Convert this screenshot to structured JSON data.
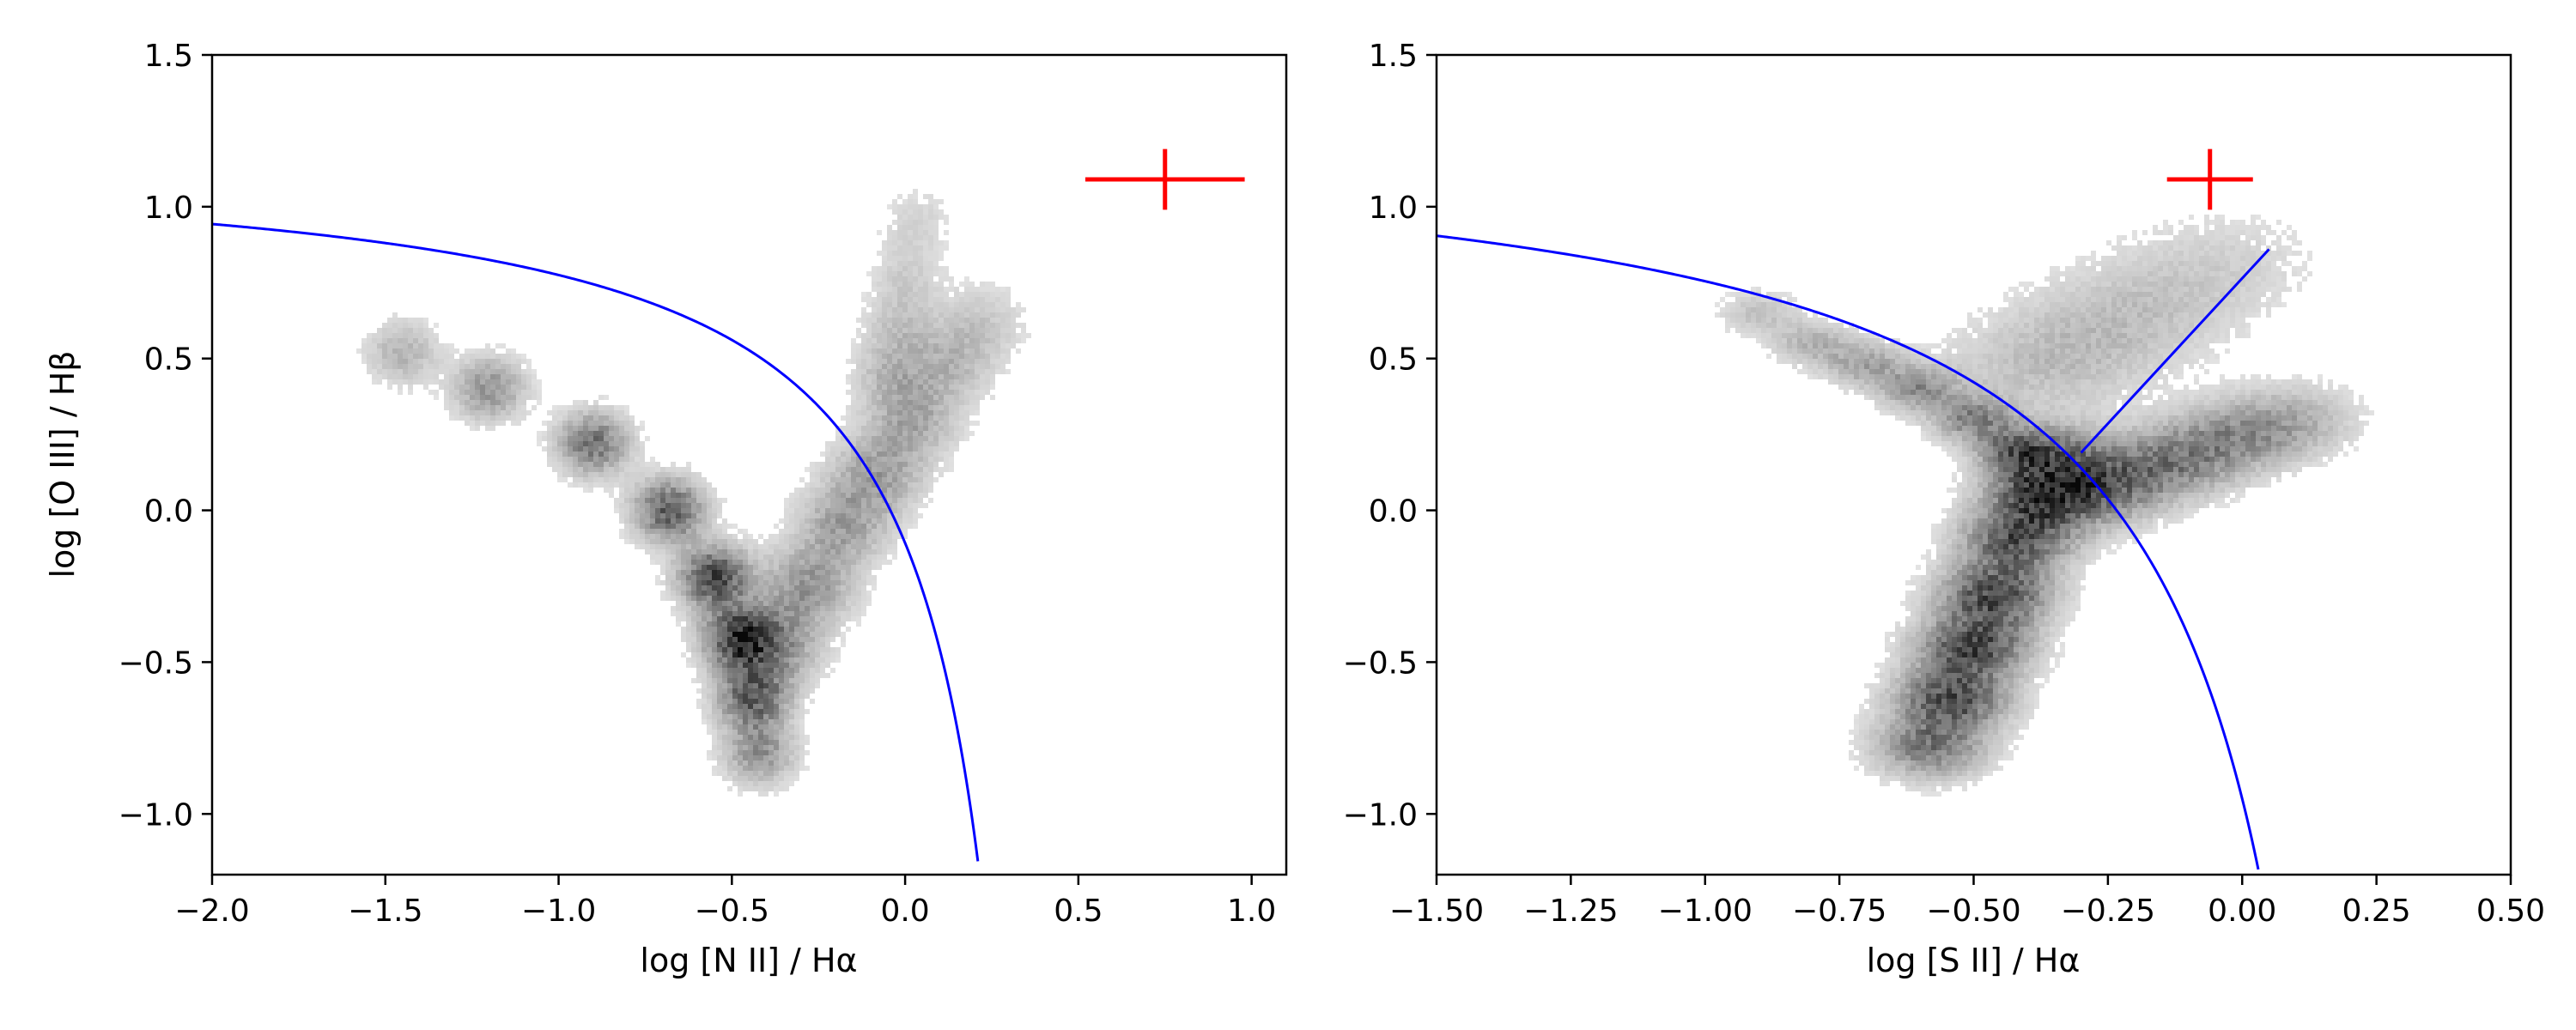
{
  "chart_data": [
    {
      "type": "heatmap",
      "xlabel": "log [N II] / Hα",
      "ylabel": "log [O III] / Hβ",
      "xlim": [
        -2.0,
        1.1
      ],
      "ylim": [
        -1.2,
        1.5
      ],
      "xticks": [
        -2.0,
        -1.5,
        -1.0,
        -0.5,
        0.0,
        0.5,
        1.0
      ],
      "xtick_labels": [
        "−2.0",
        "−1.5",
        "−1.0",
        "−0.5",
        "0.0",
        "0.5",
        "1.0"
      ],
      "yticks": [
        -1.0,
        -0.5,
        0.0,
        0.5,
        1.0,
        1.5
      ],
      "ytick_labels": [
        "−1.0",
        "−0.5",
        "0.0",
        "0.5",
        "1.0",
        "1.5"
      ],
      "grid": false,
      "density": {
        "colormap": "greys",
        "components": [
          {
            "x": [
              -1.45,
              -1.2,
              -0.9,
              -0.68,
              -0.55,
              -0.48,
              -0.44,
              -0.42
            ],
            "y": [
              0.52,
              0.4,
              0.22,
              0.0,
              -0.22,
              -0.42,
              -0.62,
              -0.8
            ],
            "weight": [
              0.35,
              0.55,
              0.75,
              0.9,
              1.0,
              1.0,
              0.85,
              0.55
            ],
            "spread": 0.07
          },
          {
            "x": [
              -0.38,
              -0.28,
              -0.18,
              -0.08,
              0.02,
              0.12,
              0.22
            ],
            "y": [
              -0.45,
              -0.25,
              -0.05,
              0.12,
              0.3,
              0.48,
              0.62
            ],
            "weight": [
              0.55,
              0.5,
              0.45,
              0.45,
              0.4,
              0.3,
              0.2
            ],
            "spread": 0.09
          },
          {
            "x": [
              -0.05,
              -0.02,
              0.0,
              0.02,
              0.05
            ],
            "y": [
              0.45,
              0.6,
              0.75,
              0.9,
              1.0
            ],
            "weight": [
              0.25,
              0.22,
              0.18,
              0.12,
              0.08
            ],
            "spread": 0.07
          }
        ]
      },
      "curve": {
        "color": "#0000ff",
        "formula": "y = 0.61 / (x - 0.47) + 1.19",
        "x_range": [
          -2.0,
          0.21
        ]
      },
      "error_bar": {
        "color": "#ff0000",
        "x": 0.75,
        "y": 1.09,
        "xerr": 0.23,
        "yerr": 0.1
      }
    },
    {
      "type": "heatmap",
      "xlabel": "log [S II] / Hα",
      "ylabel": "",
      "xlim": [
        -1.5,
        0.5
      ],
      "ylim": [
        -1.2,
        1.5
      ],
      "xticks": [
        -1.5,
        -1.25,
        -1.0,
        -0.75,
        -0.5,
        -0.25,
        0.0,
        0.25,
        0.5
      ],
      "xtick_labels": [
        "−1.50",
        "−1.25",
        "−1.00",
        "−0.75",
        "−0.50",
        "−0.25",
        "0.00",
        "0.25",
        "0.50"
      ],
      "yticks": [
        -1.0,
        -0.5,
        0.0,
        0.5,
        1.0,
        1.5
      ],
      "ytick_labels": [
        "−1.0",
        "−0.5",
        "0.0",
        "0.5",
        "1.0",
        "1.5"
      ],
      "grid": false,
      "density": {
        "colormap": "greys",
        "components": [
          {
            "x": [
              -0.58,
              -0.54,
              -0.5,
              -0.46,
              -0.42,
              -0.38,
              -0.35
            ],
            "y": [
              -0.78,
              -0.62,
              -0.45,
              -0.28,
              -0.1,
              0.05,
              0.18
            ],
            "weight": [
              0.7,
              0.95,
              1.0,
              1.0,
              0.9,
              0.75,
              0.55
            ],
            "spread": 0.07
          },
          {
            "x": [
              -0.9,
              -0.8,
              -0.7,
              -0.6,
              -0.5,
              -0.42
            ],
            "y": [
              0.65,
              0.55,
              0.48,
              0.4,
              0.3,
              0.2
            ],
            "weight": [
              0.25,
              0.35,
              0.45,
              0.55,
              0.6,
              0.6
            ],
            "spread": 0.05
          },
          {
            "x": [
              -0.3,
              -0.2,
              -0.1,
              0.0,
              0.1
            ],
            "y": [
              0.05,
              0.12,
              0.18,
              0.25,
              0.3
            ],
            "weight": [
              0.55,
              0.5,
              0.45,
              0.4,
              0.3
            ],
            "spread": 0.08
          },
          {
            "x": [
              -0.4,
              -0.3,
              -0.2,
              -0.1,
              0.0
            ],
            "y": [
              0.45,
              0.55,
              0.65,
              0.75,
              0.85
            ],
            "weight": [
              0.18,
              0.16,
              0.14,
              0.12,
              0.08
            ],
            "spread": 0.12
          }
        ]
      },
      "curve": {
        "color": "#0000ff",
        "formula": "y = 0.72 / (x - 0.32) + 1.30",
        "x_range": [
          -1.5,
          0.03
        ]
      },
      "line": {
        "color": "#0000ff",
        "x": [
          -0.3,
          0.05
        ],
        "y": [
          0.19,
          0.86
        ]
      },
      "error_bar": {
        "color": "#ff0000",
        "x": -0.06,
        "y": 1.09,
        "xerr": 0.08,
        "yerr": 0.1
      }
    }
  ]
}
